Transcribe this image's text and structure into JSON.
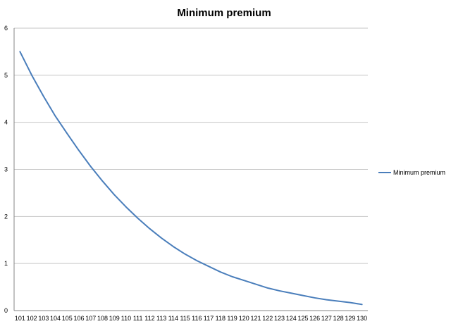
{
  "chart_data": {
    "type": "line",
    "title": "Minimum premium",
    "xlabel": "",
    "ylabel": "",
    "categories": [
      "101",
      "102",
      "103",
      "104",
      "105",
      "106",
      "107",
      "108",
      "109",
      "110",
      "111",
      "112",
      "113",
      "114",
      "115",
      "116",
      "117",
      "118",
      "119",
      "120",
      "121",
      "122",
      "123",
      "124",
      "125",
      "126",
      "127",
      "128",
      "129",
      "130"
    ],
    "series": [
      {
        "name": "Minimum premium",
        "color": "#4a7ebb",
        "values": [
          5.5,
          5.0,
          4.55,
          4.13,
          3.76,
          3.4,
          3.06,
          2.75,
          2.46,
          2.2,
          1.96,
          1.74,
          1.54,
          1.36,
          1.2,
          1.06,
          0.94,
          0.82,
          0.72,
          0.64,
          0.56,
          0.48,
          0.42,
          0.37,
          0.32,
          0.27,
          0.23,
          0.2,
          0.17,
          0.13
        ]
      }
    ],
    "ylim": [
      0,
      6
    ],
    "yticks": [
      0,
      1,
      2,
      3,
      4,
      5,
      6
    ],
    "grid": "horizontal",
    "legend_position": "right"
  }
}
